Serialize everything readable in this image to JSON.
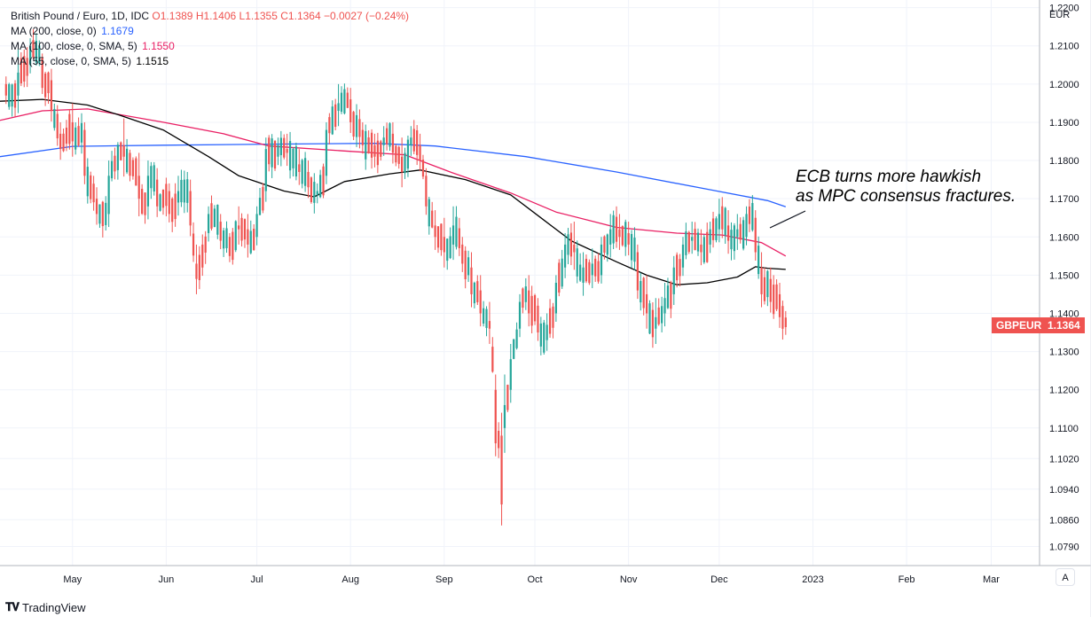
{
  "legend": {
    "symbol": "British Pound / Euro, 1D, IDC",
    "ohlc": {
      "o": "O1.1389",
      "h": "H1.1406",
      "l": "L1.1355",
      "c": "C1.1364",
      "chg": "−0.0027 (−0.24%)"
    },
    "ma200": {
      "label": "MA (200, close, 0)",
      "value": "1.1679",
      "color": "#2962ff"
    },
    "ma100": {
      "label": "MA (100, close, 0, SMA, 5)",
      "value": "1.1550",
      "color": "#e91e63"
    },
    "ma55": {
      "label": "MA (55, close, 0, SMA, 5)",
      "value": "1.1515",
      "color": "#000000"
    }
  },
  "annotation": {
    "line1": "ECB turns more hawkish",
    "line2": "as MPC consensus fractures."
  },
  "price_tag": {
    "symbol": "GBPEUR",
    "value": "1.1364",
    "color": "#ef5350"
  },
  "footer": {
    "brand": "TradingView"
  },
  "auto_label": "A",
  "colors": {
    "up": "#26a69a",
    "down": "#ef5350",
    "grid": "#f0f3fa",
    "axis_text": "#131722"
  },
  "chart_data": {
    "type": "candlestick",
    "title": "British Pound / Euro, 1D, IDC",
    "currency_label": "EUR",
    "ylim": [
      1.074,
      1.222
    ],
    "y_ticks": [
      {
        "label": "1.2200",
        "value": 1.22
      },
      {
        "label": "1.2100",
        "value": 1.21
      },
      {
        "label": "1.2000",
        "value": 1.2
      },
      {
        "label": "1.1900",
        "value": 1.19
      },
      {
        "label": "1.1800",
        "value": 1.18
      },
      {
        "label": "1.1700",
        "value": 1.17
      },
      {
        "label": "1.1600",
        "value": 1.16
      },
      {
        "label": "1.1500",
        "value": 1.15
      },
      {
        "label": "1.1400",
        "value": 1.14
      },
      {
        "label": "1.1300",
        "value": 1.13
      },
      {
        "label": "1.1200",
        "value": 1.12
      },
      {
        "label": "1.1100",
        "value": 1.11
      },
      {
        "label": "1.1020",
        "value": 1.102
      },
      {
        "label": "1.0940",
        "value": 1.094
      },
      {
        "label": "1.0860",
        "value": 1.086
      },
      {
        "label": "1.0790",
        "value": 1.079
      }
    ],
    "x_ticks": [
      {
        "label": "May",
        "day": 10
      },
      {
        "label": "Jun",
        "day": 41
      },
      {
        "label": "Jul",
        "day": 71
      },
      {
        "label": "Aug",
        "day": 102
      },
      {
        "label": "Sep",
        "day": 133
      },
      {
        "label": "Oct",
        "day": 163
      },
      {
        "label": "Nov",
        "day": 194
      },
      {
        "label": "Dec",
        "day": 224
      },
      {
        "label": "2023",
        "day": 255
      },
      {
        "label": "Feb",
        "day": 286
      },
      {
        "label": "Mar",
        "day": 314
      }
    ],
    "x_domain": [
      -14,
      330
    ],
    "ohlc_anchors": [
      [
        -12,
        1.2,
        1.202,
        1.197
      ],
      [
        -8,
        1.197,
        1.209,
        1.203
      ],
      [
        -4,
        1.205,
        1.212,
        1.21
      ],
      [
        0,
        1.207,
        1.208,
        1.199
      ],
      [
        3,
        1.201,
        1.204,
        1.193
      ],
      [
        6,
        1.187,
        1.19,
        1.183
      ],
      [
        10,
        1.19,
        1.195,
        1.185
      ],
      [
        14,
        1.188,
        1.19,
        1.176
      ],
      [
        18,
        1.17,
        1.173,
        1.166
      ],
      [
        22,
        1.166,
        1.18,
        1.176
      ],
      [
        27,
        1.184,
        1.191,
        1.181
      ],
      [
        32,
        1.176,
        1.182,
        1.17
      ],
      [
        35,
        1.168,
        1.18,
        1.176
      ],
      [
        38,
        1.175,
        1.178,
        1.168
      ],
      [
        42,
        1.172,
        1.174,
        1.166
      ],
      [
        45,
        1.169,
        1.176,
        1.172
      ],
      [
        49,
        1.172,
        1.175,
        1.163
      ],
      [
        51,
        1.153,
        1.158,
        1.149
      ],
      [
        55,
        1.161,
        1.168,
        1.166
      ],
      [
        59,
        1.164,
        1.166,
        1.159
      ],
      [
        62,
        1.16,
        1.161,
        1.155
      ],
      [
        65,
        1.163,
        1.168,
        1.162
      ],
      [
        68,
        1.162,
        1.166,
        1.158
      ],
      [
        71,
        1.16,
        1.168,
        1.166
      ],
      [
        74,
        1.172,
        1.186,
        1.183
      ],
      [
        78,
        1.181,
        1.186,
        1.184
      ],
      [
        81,
        1.183,
        1.187,
        1.182
      ],
      [
        85,
        1.179,
        1.183,
        1.177
      ],
      [
        88,
        1.177,
        1.18,
        1.173
      ],
      [
        91,
        1.171,
        1.174,
        1.172
      ],
      [
        94,
        1.176,
        1.19,
        1.188
      ],
      [
        98,
        1.193,
        1.2,
        1.195
      ],
      [
        102,
        1.196,
        1.199,
        1.19
      ],
      [
        106,
        1.188,
        1.19,
        1.184
      ],
      [
        110,
        1.184,
        1.187,
        1.181
      ],
      [
        113,
        1.184,
        1.189,
        1.186
      ],
      [
        116,
        1.187,
        1.19,
        1.182
      ],
      [
        119,
        1.181,
        1.186,
        1.177
      ],
      [
        122,
        1.184,
        1.189,
        1.186
      ],
      [
        125,
        1.184,
        1.187,
        1.18
      ],
      [
        127,
        1.176,
        1.178,
        1.168
      ],
      [
        130,
        1.163,
        1.167,
        1.16
      ],
      [
        133,
        1.16,
        1.165,
        1.156
      ],
      [
        136,
        1.158,
        1.168,
        1.163
      ],
      [
        139,
        1.158,
        1.16,
        1.153
      ],
      [
        142,
        1.152,
        1.156,
        1.145
      ],
      [
        145,
        1.146,
        1.15,
        1.14
      ],
      [
        148,
        1.138,
        1.143,
        1.136
      ],
      [
        150,
        1.12,
        1.124,
        1.106
      ],
      [
        152,
        1.108,
        1.114,
        1.09
      ],
      [
        153,
        1.11,
        1.124,
        1.116
      ],
      [
        155,
        1.12,
        1.132,
        1.128
      ],
      [
        158,
        1.136,
        1.145,
        1.143
      ],
      [
        161,
        1.146,
        1.15,
        1.14
      ],
      [
        164,
        1.142,
        1.144,
        1.135
      ],
      [
        167,
        1.133,
        1.14,
        1.137
      ],
      [
        170,
        1.14,
        1.15,
        1.148
      ],
      [
        173,
        1.152,
        1.161,
        1.158
      ],
      [
        176,
        1.158,
        1.164,
        1.156
      ],
      [
        179,
        1.148,
        1.156,
        1.152
      ],
      [
        182,
        1.15,
        1.157,
        1.153
      ],
      [
        185,
        1.15,
        1.16,
        1.158
      ],
      [
        188,
        1.158,
        1.166,
        1.162
      ],
      [
        191,
        1.162,
        1.166,
        1.16
      ],
      [
        194,
        1.161,
        1.164,
        1.158
      ],
      [
        197,
        1.156,
        1.158,
        1.146
      ],
      [
        200,
        1.145,
        1.15,
        1.14
      ],
      [
        203,
        1.136,
        1.144,
        1.139
      ],
      [
        206,
        1.14,
        1.148,
        1.144
      ],
      [
        209,
        1.145,
        1.155,
        1.152
      ],
      [
        212,
        1.152,
        1.16,
        1.158
      ],
      [
        215,
        1.159,
        1.164,
        1.16
      ],
      [
        218,
        1.158,
        1.162,
        1.156
      ],
      [
        221,
        1.158,
        1.164,
        1.162
      ],
      [
        224,
        1.162,
        1.17,
        1.166
      ],
      [
        227,
        1.163,
        1.167,
        1.159
      ],
      [
        230,
        1.16,
        1.166,
        1.162
      ],
      [
        233,
        1.16,
        1.168,
        1.166
      ],
      [
        236,
        1.165,
        1.167,
        1.156
      ],
      [
        238,
        1.152,
        1.156,
        1.145
      ],
      [
        241,
        1.149,
        1.152,
        1.143
      ],
      [
        244,
        1.145,
        1.148,
        1.139
      ],
      [
        246,
        1.1389,
        1.1406,
        1.1364
      ]
    ],
    "ma_series": [
      {
        "name": "MA (200, close, 0)",
        "color": "#2962ff",
        "points": [
          [
            -14,
            1.181
          ],
          [
            10,
            1.1837
          ],
          [
            40,
            1.184
          ],
          [
            80,
            1.1843
          ],
          [
            110,
            1.1845
          ],
          [
            130,
            1.1838
          ],
          [
            160,
            1.181
          ],
          [
            190,
            1.177
          ],
          [
            220,
            1.1725
          ],
          [
            240,
            1.1695
          ],
          [
            246,
            1.1679
          ]
        ]
      },
      {
        "name": "MA (100, close, 0, SMA, 5)",
        "color": "#e91e63",
        "points": [
          [
            -14,
            1.1905
          ],
          [
            0,
            1.193
          ],
          [
            15,
            1.1935
          ],
          [
            40,
            1.19
          ],
          [
            60,
            1.187
          ],
          [
            75,
            1.1838
          ],
          [
            100,
            1.1825
          ],
          [
            120,
            1.1815
          ],
          [
            135,
            1.177
          ],
          [
            155,
            1.1715
          ],
          [
            170,
            1.1665
          ],
          [
            190,
            1.1625
          ],
          [
            210,
            1.161
          ],
          [
            225,
            1.1605
          ],
          [
            238,
            1.1585
          ],
          [
            246,
            1.155
          ]
        ]
      },
      {
        "name": "MA (55, close, 0, SMA, 5)",
        "color": "#000000",
        "points": [
          [
            -14,
            1.1955
          ],
          [
            0,
            1.196
          ],
          [
            15,
            1.1945
          ],
          [
            25,
            1.192
          ],
          [
            40,
            1.188
          ],
          [
            55,
            1.181
          ],
          [
            65,
            1.176
          ],
          [
            80,
            1.172
          ],
          [
            90,
            1.1705
          ],
          [
            100,
            1.1745
          ],
          [
            115,
            1.1765
          ],
          [
            125,
            1.1775
          ],
          [
            140,
            1.175
          ],
          [
            155,
            1.171
          ],
          [
            165,
            1.165
          ],
          [
            175,
            1.159
          ],
          [
            190,
            1.1535
          ],
          [
            200,
            1.15
          ],
          [
            210,
            1.1475
          ],
          [
            220,
            1.148
          ],
          [
            230,
            1.1495
          ],
          [
            236,
            1.1522
          ],
          [
            240,
            1.1518
          ],
          [
            246,
            1.1515
          ]
        ]
      }
    ]
  }
}
